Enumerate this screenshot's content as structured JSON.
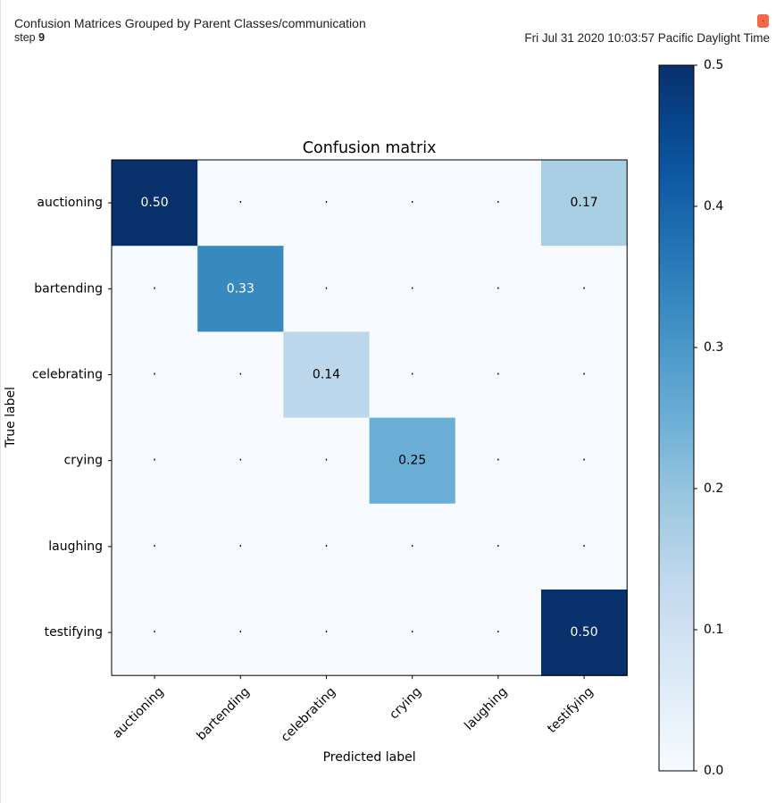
{
  "card": {
    "title": "Confusion Matrices Grouped by Parent Classes/communication",
    "step_label": "step",
    "step_value": "9",
    "timestamp": "Fri Jul 31 2020 10:03:57 Pacific Daylight Time",
    "marker_icon": "pin-marker-icon",
    "marker_color": "#f4694a"
  },
  "chart_data": {
    "type": "heatmap",
    "title": "Confusion matrix",
    "xlabel": "Predicted label",
    "ylabel": "True label",
    "row_labels": [
      "auctioning",
      "bartending",
      "celebrating",
      "crying",
      "laughing",
      "testifying"
    ],
    "col_labels": [
      "auctioning",
      "bartending",
      "celebrating",
      "crying",
      "laughing",
      "testifying"
    ],
    "values": [
      [
        0.5,
        0,
        0,
        0,
        0,
        0.17
      ],
      [
        0,
        0.33,
        0,
        0,
        0,
        0
      ],
      [
        0,
        0,
        0.14,
        0,
        0,
        0
      ],
      [
        0,
        0,
        0,
        0.25,
        0,
        0
      ],
      [
        0,
        0,
        0,
        0,
        0,
        0
      ],
      [
        0,
        0,
        0,
        0,
        0,
        0.5
      ]
    ],
    "cell_text": [
      [
        "0.50",
        ".",
        ".",
        ".",
        ".",
        "0.17"
      ],
      [
        ".",
        "0.33",
        ".",
        ".",
        ".",
        "."
      ],
      [
        ".",
        ".",
        "0.14",
        ".",
        ".",
        "."
      ],
      [
        ".",
        ".",
        ".",
        "0.25",
        ".",
        "."
      ],
      [
        ".",
        ".",
        ".",
        ".",
        ".",
        "."
      ],
      [
        ".",
        ".",
        ".",
        ".",
        ".",
        "0.50"
      ]
    ],
    "colormap": "Blues",
    "colorbar": {
      "range": [
        0.0,
        0.5
      ],
      "ticks": [
        "0.0",
        "0.1",
        "0.2",
        "0.3",
        "0.4",
        "0.5"
      ]
    }
  }
}
